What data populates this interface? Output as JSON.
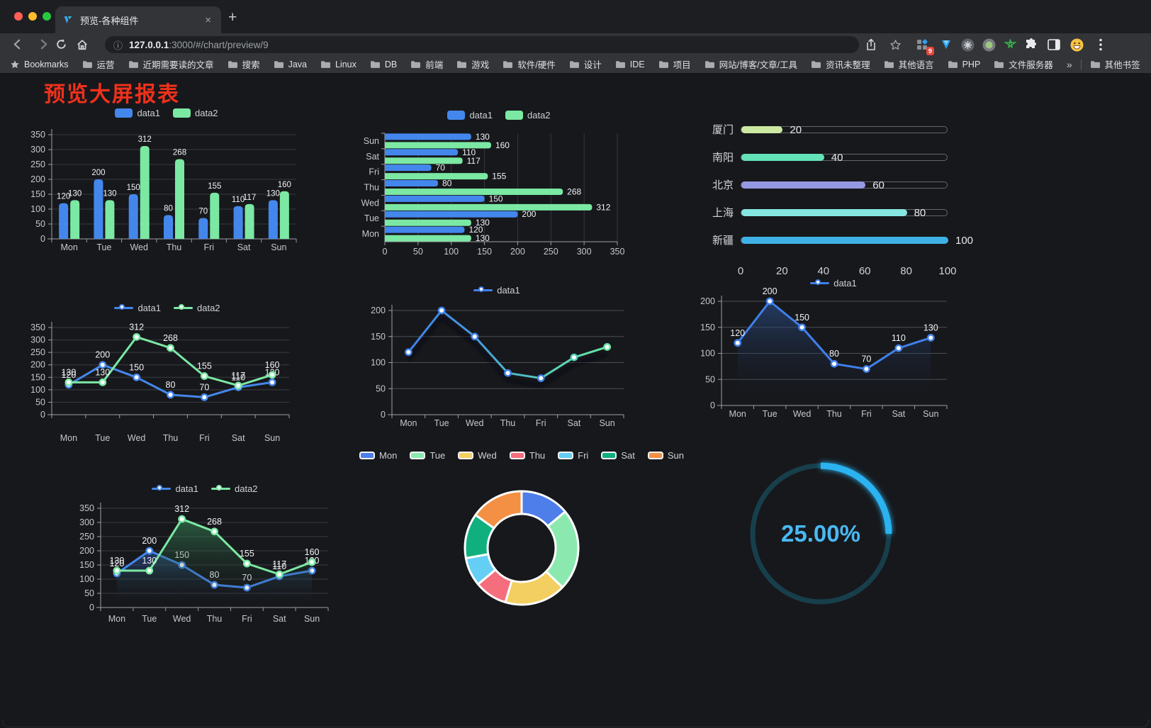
{
  "browser": {
    "tab_title": "预览-各种组件",
    "new_tab_glyph": "+",
    "tab_close_glyph": "×",
    "url_host": "127.0.0.1",
    "url_path": ":3000/#/chart/preview/9",
    "bookmarks_label": "Bookmarks",
    "bookmarks": [
      "运营",
      "近期需要读的文章",
      "搜索",
      "Java",
      "Linux",
      "DB",
      "前端",
      "游戏",
      "软件/硬件",
      "设计",
      "IDE",
      "项目",
      "网站/博客/文章/工具",
      "资讯未整理",
      "其他语言",
      "PHP",
      "文件服务器"
    ],
    "overflow_chevron": "»",
    "other_bookmarks": "其他书签",
    "extension_badge": "9",
    "menu_glyph": "⋮"
  },
  "page": {
    "title": "预览大屏报表",
    "title_color": "#ef311b",
    "background": "#17181c"
  },
  "chart_data": [
    {
      "id": "bar-vertical",
      "type": "bar",
      "categories": [
        "Mon",
        "Tue",
        "Wed",
        "Thu",
        "Fri",
        "Sat",
        "Sun"
      ],
      "series": [
        {
          "name": "data1",
          "color": "#4487EC",
          "values": [
            120,
            200,
            150,
            80,
            70,
            110,
            130
          ]
        },
        {
          "name": "data2",
          "color": "#7BE8A3",
          "values": [
            130,
            130,
            312,
            268,
            155,
            117,
            160
          ]
        }
      ],
      "ylim": [
        0,
        350
      ],
      "ytick": 50,
      "legend_position": "top",
      "value_labels": true,
      "grid": true
    },
    {
      "id": "bar-horizontal",
      "type": "bar-horizontal",
      "categories": [
        "Mon",
        "Tue",
        "Wed",
        "Thu",
        "Fri",
        "Sat",
        "Sun"
      ],
      "series": [
        {
          "name": "data1",
          "color": "#4487EC",
          "values": [
            120,
            200,
            150,
            80,
            70,
            110,
            130
          ]
        },
        {
          "name": "data2",
          "color": "#7BE8A3",
          "values": [
            130,
            130,
            312,
            268,
            155,
            117,
            160
          ]
        }
      ],
      "xlim": [
        0,
        350
      ],
      "xtick": 50,
      "legend_position": "top",
      "value_labels": true,
      "grid": true
    },
    {
      "id": "progress-list",
      "type": "progress",
      "max": 100,
      "axis_ticks": [
        0,
        20,
        40,
        60,
        80,
        100
      ],
      "items": [
        {
          "label": "厦门",
          "value": 20,
          "color": "#CDE9A1"
        },
        {
          "label": "南阳",
          "value": 40,
          "color": "#63E2B7"
        },
        {
          "label": "北京",
          "value": 60,
          "color": "#9599E2"
        },
        {
          "label": "上海",
          "value": 80,
          "color": "#86E7E2"
        },
        {
          "label": "新疆",
          "value": 100,
          "color": "#3FB2E5"
        }
      ]
    },
    {
      "id": "line-two-series",
      "type": "line",
      "categories": [
        "Mon",
        "Tue",
        "Wed",
        "Thu",
        "Fri",
        "Sat",
        "Sun"
      ],
      "series": [
        {
          "name": "data1",
          "color": "#4487EC",
          "values": [
            120,
            200,
            150,
            80,
            70,
            110,
            130
          ]
        },
        {
          "name": "data2",
          "color": "#7BE8A3",
          "values": [
            130,
            130,
            312,
            268,
            155,
            117,
            160
          ]
        }
      ],
      "ylim": [
        0,
        350
      ],
      "ytick": 50,
      "legend_position": "top",
      "value_labels": true,
      "grid": true
    },
    {
      "id": "line-gradient",
      "type": "line",
      "categories": [
        "Mon",
        "Tue",
        "Wed",
        "Thu",
        "Fri",
        "Sat",
        "Sun"
      ],
      "series": [
        {
          "name": "data1",
          "color": "#4080EB",
          "values": [
            120,
            200,
            150,
            80,
            70,
            110,
            130
          ],
          "gradient": [
            "#4080EB",
            "#459BE0",
            "#55CBBB",
            "#68E6A2"
          ],
          "marker_colors": [
            "#4080EB",
            "#4080EB",
            "#4080EB",
            "#4080EB",
            "#4080EB",
            "#53CDB9",
            "#68E6A2"
          ],
          "shadow": true
        }
      ],
      "ylim": [
        0,
        200
      ],
      "ytick": 50,
      "legend_position": "top",
      "value_labels": false,
      "grid": true
    },
    {
      "id": "area-single",
      "type": "area",
      "categories": [
        "Mon",
        "Tue",
        "Wed",
        "Thu",
        "Fri",
        "Sat",
        "Sun"
      ],
      "series": [
        {
          "name": "data1",
          "color": "#4080EB",
          "values": [
            120,
            200,
            150,
            80,
            70,
            110,
            130
          ],
          "area_from": "rgba(47,90,160,0.55)",
          "area_to": "rgba(23,28,40,0)"
        }
      ],
      "ylim": [
        0,
        200
      ],
      "ytick": 50,
      "legend_position": "top",
      "value_labels": true,
      "grid": true
    },
    {
      "id": "area-two-series",
      "type": "area",
      "categories": [
        "Mon",
        "Tue",
        "Wed",
        "Thu",
        "Fri",
        "Sat",
        "Sun"
      ],
      "series": [
        {
          "name": "data1",
          "color": "#4487EC",
          "values": [
            120,
            200,
            150,
            80,
            70,
            110,
            130
          ],
          "area_from": "rgba(52,100,190,0.50)",
          "area_to": "rgba(23,28,40,0)"
        },
        {
          "name": "data2",
          "color": "#7BE8A3",
          "values": [
            130,
            130,
            312,
            268,
            155,
            117,
            160
          ],
          "area_from": "rgba(58,150,95,0.55)",
          "area_to": "rgba(23,32,28,0)"
        }
      ],
      "ylim": [
        0,
        350
      ],
      "ytick": 50,
      "legend_position": "top",
      "value_labels": true,
      "grid": true
    },
    {
      "id": "donut",
      "type": "pie",
      "categories": [
        "Mon",
        "Tue",
        "Wed",
        "Thu",
        "Fri",
        "Sat",
        "Sun"
      ],
      "values": [
        120,
        200,
        150,
        80,
        70,
        110,
        130
      ],
      "colors": [
        "#4D7EE9",
        "#8BE9AF",
        "#F3CF62",
        "#F56E7D",
        "#65CEF4",
        "#0FB07E",
        "#F39044"
      ],
      "legend_position": "top",
      "border_color": "#FFFFFF"
    },
    {
      "id": "gauge",
      "type": "gauge",
      "value": 25,
      "label": "25.00%",
      "color": "#2BB3F0",
      "track_color": "#173F4B",
      "text_color": "#49B9F4"
    }
  ]
}
